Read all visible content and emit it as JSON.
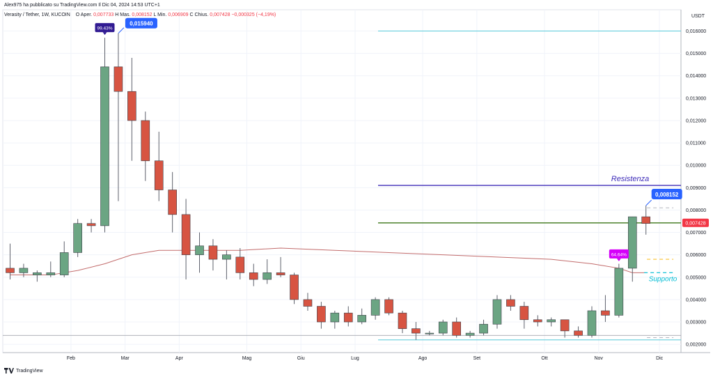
{
  "header": {
    "published": "Alex975 ha pubblicato su TradingView.com Il Dic 04, 2024 14:53 UTC+1",
    "symbol": "Verasity / Tether, 1W, KUCOIN",
    "open_label": "O",
    "open_caption": "Aper.",
    "open_value": "0,007733",
    "high_label": "H",
    "high_caption": "Mas.",
    "high_value": "0,008152",
    "low_label": "L",
    "low_caption": "Min.",
    "low_value": "0,006909",
    "close_label": "C",
    "close_caption": "Chius.",
    "close_value": "0,007428",
    "change": "−0,000325 (−4,19%)"
  },
  "currency": "USDT",
  "footer": {
    "brand": "TradingView"
  },
  "colors": {
    "up": "#6ba583",
    "down": "#d75442",
    "ma": "#c26b6b",
    "resistance": "#3d2bb8",
    "support_band": "#53c9d8",
    "price_line": "#5a8a3a",
    "callout": "#2962ff",
    "pct_label": "#311b92",
    "pct_label2": "#d500f9",
    "support_text": "#00bcd4",
    "price_tag": "#f23645"
  },
  "chart_data": {
    "type": "candlestick",
    "x_ticks": [
      "Feb",
      "Mar",
      "Apr",
      "Mag",
      "Giu",
      "Lug",
      "Ago",
      "Set",
      "Ott",
      "Nov",
      "Dic"
    ],
    "x_tick_index": [
      4.5,
      8.5,
      12.5,
      17.5,
      21.5,
      25.5,
      30.5,
      34.5,
      39.5,
      43.5,
      48
    ],
    "y_ticks": [
      "0,002000",
      "0,003000",
      "0,004000",
      "0,005000",
      "0,006000",
      "0,007000",
      "0,008000",
      "0,009000",
      "0,010000",
      "0,011000",
      "0,012000",
      "0,013000",
      "0,014000",
      "0,015000",
      "0,016000"
    ],
    "y_tick_values": [
      0.002,
      0.003,
      0.004,
      0.005,
      0.006,
      0.007,
      0.008,
      0.009,
      0.01,
      0.011,
      0.012,
      0.013,
      0.014,
      0.015,
      0.016
    ],
    "ylim": [
      0.00163,
      0.01695
    ],
    "candles": [
      {
        "o": 0.0054,
        "h": 0.0065,
        "l": 0.0049,
        "c": 0.0052
      },
      {
        "o": 0.0052,
        "h": 0.0056,
        "l": 0.005,
        "c": 0.0054
      },
      {
        "o": 0.0051,
        "h": 0.0053,
        "l": 0.0048,
        "c": 0.0052
      },
      {
        "o": 0.0051,
        "h": 0.0057,
        "l": 0.005,
        "c": 0.0052
      },
      {
        "o": 0.0051,
        "h": 0.0066,
        "l": 0.005,
        "c": 0.0061
      },
      {
        "o": 0.0061,
        "h": 0.0076,
        "l": 0.0059,
        "c": 0.0074
      },
      {
        "o": 0.0074,
        "h": 0.0076,
        "l": 0.007,
        "c": 0.0073
      },
      {
        "o": 0.0073,
        "h": 0.0157,
        "l": 0.007,
        "c": 0.0144
      },
      {
        "o": 0.0144,
        "h": 0.0159,
        "l": 0.0084,
        "c": 0.0133
      },
      {
        "o": 0.0133,
        "h": 0.0148,
        "l": 0.0102,
        "c": 0.012
      },
      {
        "o": 0.012,
        "h": 0.0124,
        "l": 0.0093,
        "c": 0.0102
      },
      {
        "o": 0.0102,
        "h": 0.0115,
        "l": 0.0084,
        "c": 0.0089
      },
      {
        "o": 0.0089,
        "h": 0.0097,
        "l": 0.007,
        "c": 0.0078
      },
      {
        "o": 0.0078,
        "h": 0.0085,
        "l": 0.0049,
        "c": 0.006
      },
      {
        "o": 0.006,
        "h": 0.007,
        "l": 0.0052,
        "c": 0.0064
      },
      {
        "o": 0.0064,
        "h": 0.0067,
        "l": 0.0053,
        "c": 0.0058
      },
      {
        "o": 0.0058,
        "h": 0.0062,
        "l": 0.0049,
        "c": 0.006
      },
      {
        "o": 0.0059,
        "h": 0.0063,
        "l": 0.0049,
        "c": 0.0052
      },
      {
        "o": 0.0052,
        "h": 0.0056,
        "l": 0.0046,
        "c": 0.0049
      },
      {
        "o": 0.0049,
        "h": 0.0058,
        "l": 0.0047,
        "c": 0.0052
      },
      {
        "o": 0.0052,
        "h": 0.0059,
        "l": 0.005,
        "c": 0.0051
      },
      {
        "o": 0.0051,
        "h": 0.0052,
        "l": 0.0038,
        "c": 0.004
      },
      {
        "o": 0.004,
        "h": 0.0043,
        "l": 0.0035,
        "c": 0.0037
      },
      {
        "o": 0.0037,
        "h": 0.0039,
        "l": 0.0027,
        "c": 0.003
      },
      {
        "o": 0.003,
        "h": 0.0035,
        "l": 0.0027,
        "c": 0.0034
      },
      {
        "o": 0.0034,
        "h": 0.0037,
        "l": 0.0028,
        "c": 0.003
      },
      {
        "o": 0.003,
        "h": 0.0036,
        "l": 0.0029,
        "c": 0.0033
      },
      {
        "o": 0.0033,
        "h": 0.0041,
        "l": 0.0031,
        "c": 0.004
      },
      {
        "o": 0.004,
        "h": 0.0041,
        "l": 0.0033,
        "c": 0.0034
      },
      {
        "o": 0.0034,
        "h": 0.0035,
        "l": 0.0025,
        "c": 0.0027
      },
      {
        "o": 0.0027,
        "h": 0.003,
        "l": 0.0022,
        "c": 0.0025
      },
      {
        "o": 0.0025,
        "h": 0.0026,
        "l": 0.0024,
        "c": 0.0025
      },
      {
        "o": 0.0025,
        "h": 0.0031,
        "l": 0.0024,
        "c": 0.003
      },
      {
        "o": 0.003,
        "h": 0.0032,
        "l": 0.0023,
        "c": 0.0024
      },
      {
        "o": 0.0024,
        "h": 0.0026,
        "l": 0.0023,
        "c": 0.0025
      },
      {
        "o": 0.0025,
        "h": 0.0031,
        "l": 0.0024,
        "c": 0.0029
      },
      {
        "o": 0.0029,
        "h": 0.0042,
        "l": 0.0027,
        "c": 0.004
      },
      {
        "o": 0.004,
        "h": 0.0042,
        "l": 0.0035,
        "c": 0.0037
      },
      {
        "o": 0.0037,
        "h": 0.0039,
        "l": 0.0027,
        "c": 0.0031
      },
      {
        "o": 0.0031,
        "h": 0.0033,
        "l": 0.0028,
        "c": 0.003
      },
      {
        "o": 0.003,
        "h": 0.0032,
        "l": 0.0028,
        "c": 0.0031
      },
      {
        "o": 0.0031,
        "h": 0.0031,
        "l": 0.0023,
        "c": 0.0026
      },
      {
        "o": 0.0026,
        "h": 0.0028,
        "l": 0.0023,
        "c": 0.0024
      },
      {
        "o": 0.0024,
        "h": 0.0037,
        "l": 0.0023,
        "c": 0.0035
      },
      {
        "o": 0.0035,
        "h": 0.0042,
        "l": 0.003,
        "c": 0.0033
      },
      {
        "o": 0.0033,
        "h": 0.0056,
        "l": 0.0032,
        "c": 0.0054
      },
      {
        "o": 0.0054,
        "h": 0.0077,
        "l": 0.0048,
        "c": 0.0077
      },
      {
        "o": 0.0077,
        "h": 0.0082,
        "l": 0.0069,
        "c": 0.0074
      }
    ],
    "moving_average": [
      {
        "i": 0,
        "v": 0.0051
      },
      {
        "i": 3,
        "v": 0.0051
      },
      {
        "i": 5,
        "v": 0.0053
      },
      {
        "i": 7,
        "v": 0.0056
      },
      {
        "i": 9,
        "v": 0.006
      },
      {
        "i": 11,
        "v": 0.0062
      },
      {
        "i": 13,
        "v": 0.0062
      },
      {
        "i": 17,
        "v": 0.0062
      },
      {
        "i": 20,
        "v": 0.0063
      },
      {
        "i": 24,
        "v": 0.0062
      },
      {
        "i": 28,
        "v": 0.0061
      },
      {
        "i": 32,
        "v": 0.006
      },
      {
        "i": 36,
        "v": 0.0059
      },
      {
        "i": 40,
        "v": 0.0058
      },
      {
        "i": 43,
        "v": 0.0056
      },
      {
        "i": 45,
        "v": 0.0054
      },
      {
        "i": 46,
        "v": 0.0052
      },
      {
        "i": 47,
        "v": 0.0052
      }
    ],
    "levels": {
      "support_band_top": 0.016,
      "support_band_bottom": 0.0022,
      "resistance": 0.0091,
      "current_price": 0.007428,
      "support_dash": 0.0052,
      "yellow_dash": 0.0058,
      "gray_dash_top": 0.0081,
      "gray_dash_bottom": 0.0023,
      "grey_baseline": 0.0024
    },
    "annotations": {
      "high_callout": "0,015940",
      "high_callout_index": 8,
      "pct_label_1": "99.43%",
      "pct_label_1_index": 7,
      "current_high_callout": "0,008152",
      "current_high_index": 47,
      "pct_label_2": "64.64%",
      "pct_label_2_index": 45,
      "resistance_text": "Resistenza",
      "support_text": "Supporto",
      "price_tag": "0,007428"
    }
  }
}
